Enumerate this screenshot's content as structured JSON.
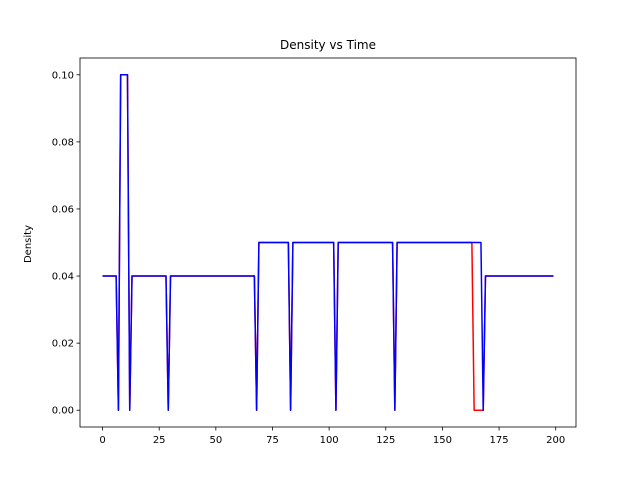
{
  "chart_data": {
    "type": "line",
    "title": "Density vs Time",
    "xlabel": "",
    "ylabel": "Density",
    "xlim": [
      -9.95,
      208.95
    ],
    "ylim": [
      -0.005,
      0.105
    ],
    "xticks": [
      0,
      25,
      50,
      75,
      100,
      125,
      150,
      175,
      200
    ],
    "yticks": [
      0.0,
      0.02,
      0.04,
      0.06,
      0.08,
      0.1
    ],
    "ytick_labels": [
      "0.00",
      "0.02",
      "0.04",
      "0.06",
      "0.08",
      "0.10"
    ],
    "grid": false,
    "series": [
      {
        "color": "#ff0000",
        "x": [
          0,
          6,
          7,
          8,
          11,
          12,
          13,
          28,
          29,
          30,
          67,
          68,
          69,
          82,
          83,
          84,
          102,
          103,
          104,
          128,
          129,
          130,
          163,
          164,
          168,
          169,
          199
        ],
        "y": [
          0.04,
          0.04,
          0.0,
          0.1,
          0.1,
          0.0,
          0.04,
          0.04,
          0.0,
          0.04,
          0.04,
          0.0,
          0.05,
          0.05,
          0.0,
          0.05,
          0.05,
          0.0,
          0.05,
          0.05,
          0.0,
          0.05,
          0.05,
          0.0,
          0.0,
          0.04,
          0.04
        ]
      },
      {
        "color": "#0000ff",
        "x": [
          0,
          6,
          7,
          8,
          11,
          12,
          13,
          28,
          29,
          30,
          66,
          67,
          68,
          69,
          82,
          83,
          84,
          102,
          103,
          104,
          128,
          129,
          130,
          167,
          168,
          169,
          199
        ],
        "y": [
          0.04,
          0.04,
          0.0,
          0.1,
          0.1,
          0.0,
          0.04,
          0.04,
          0.0,
          0.04,
          0.04,
          0.04,
          0.0,
          0.05,
          0.05,
          0.0,
          0.05,
          0.05,
          0.0,
          0.05,
          0.05,
          0.0,
          0.05,
          0.05,
          0.0,
          0.04,
          0.04
        ]
      }
    ]
  }
}
